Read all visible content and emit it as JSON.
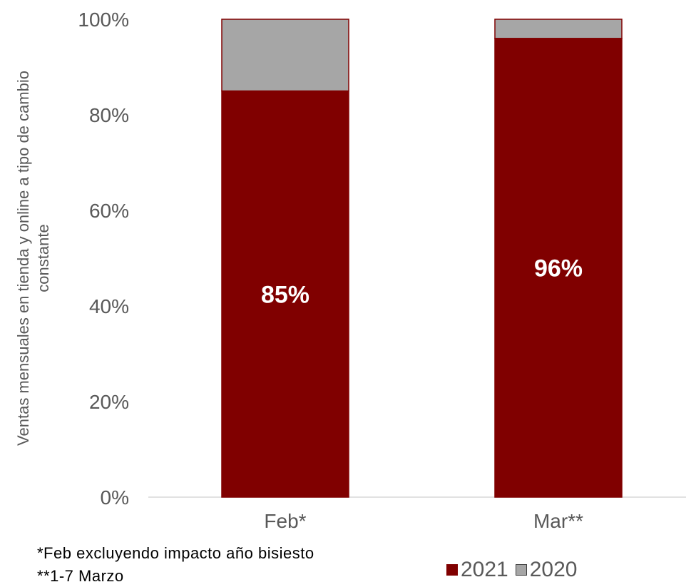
{
  "chart_data": {
    "type": "bar",
    "stacked": true,
    "categories": [
      "Feb*",
      "Mar**"
    ],
    "series": [
      {
        "name": "2021",
        "values": [
          85,
          96
        ],
        "color": "#800000",
        "data_labels": [
          "85%",
          "96%"
        ]
      },
      {
        "name": "2020",
        "values": [
          15,
          4
        ],
        "color": "#A6A6A6"
      }
    ],
    "ylabel": "Ventas mensuales en tienda y online a tipo de cambio constante",
    "ylabel_lines": [
      "Ventas mensuales en tienda y online a tipo de cambio",
      "constante"
    ],
    "yticks": [
      "0%",
      "20%",
      "40%",
      "60%",
      "80%",
      "100%"
    ],
    "ylim": [
      0,
      100
    ],
    "grid": false,
    "legend_position": "bottom-right"
  },
  "footnotes": [
    "*Feb excluyendo impacto año bisiesto",
    "**1-7 Marzo"
  ]
}
